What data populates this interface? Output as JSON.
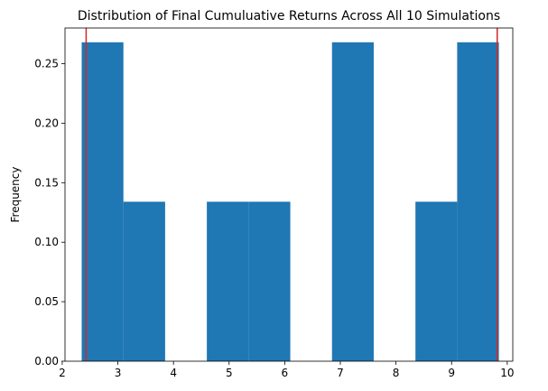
{
  "chart_data": {
    "type": "bar",
    "title": "Distribution of Final Cumuluative Returns Across All 10 Simulations",
    "xlabel": "",
    "ylabel": "Frequency",
    "xlim": [
      2.05,
      10.1
    ],
    "ylim": [
      0,
      0.28
    ],
    "x_ticks": [
      2,
      3,
      4,
      5,
      6,
      7,
      8,
      9,
      10
    ],
    "y_ticks": [
      "0.00",
      "0.05",
      "0.10",
      "0.15",
      "0.20",
      "0.25"
    ],
    "bins": [
      {
        "start": 2.35,
        "end": 3.1,
        "value": 0.268
      },
      {
        "start": 3.1,
        "end": 3.85,
        "value": 0.134
      },
      {
        "start": 3.85,
        "end": 4.6,
        "value": 0.0
      },
      {
        "start": 4.6,
        "end": 5.35,
        "value": 0.134
      },
      {
        "start": 5.35,
        "end": 6.1,
        "value": 0.134
      },
      {
        "start": 6.1,
        "end": 6.85,
        "value": 0.0
      },
      {
        "start": 6.85,
        "end": 7.6,
        "value": 0.268
      },
      {
        "start": 7.6,
        "end": 8.35,
        "value": 0.0
      },
      {
        "start": 8.35,
        "end": 9.1,
        "value": 0.134
      },
      {
        "start": 9.1,
        "end": 9.85,
        "value": 0.268
      }
    ],
    "vlines": [
      2.43,
      9.82
    ],
    "colors": {
      "bar": "#1f77b4",
      "vline": "#d62728"
    },
    "grid": false,
    "legend": "none"
  }
}
